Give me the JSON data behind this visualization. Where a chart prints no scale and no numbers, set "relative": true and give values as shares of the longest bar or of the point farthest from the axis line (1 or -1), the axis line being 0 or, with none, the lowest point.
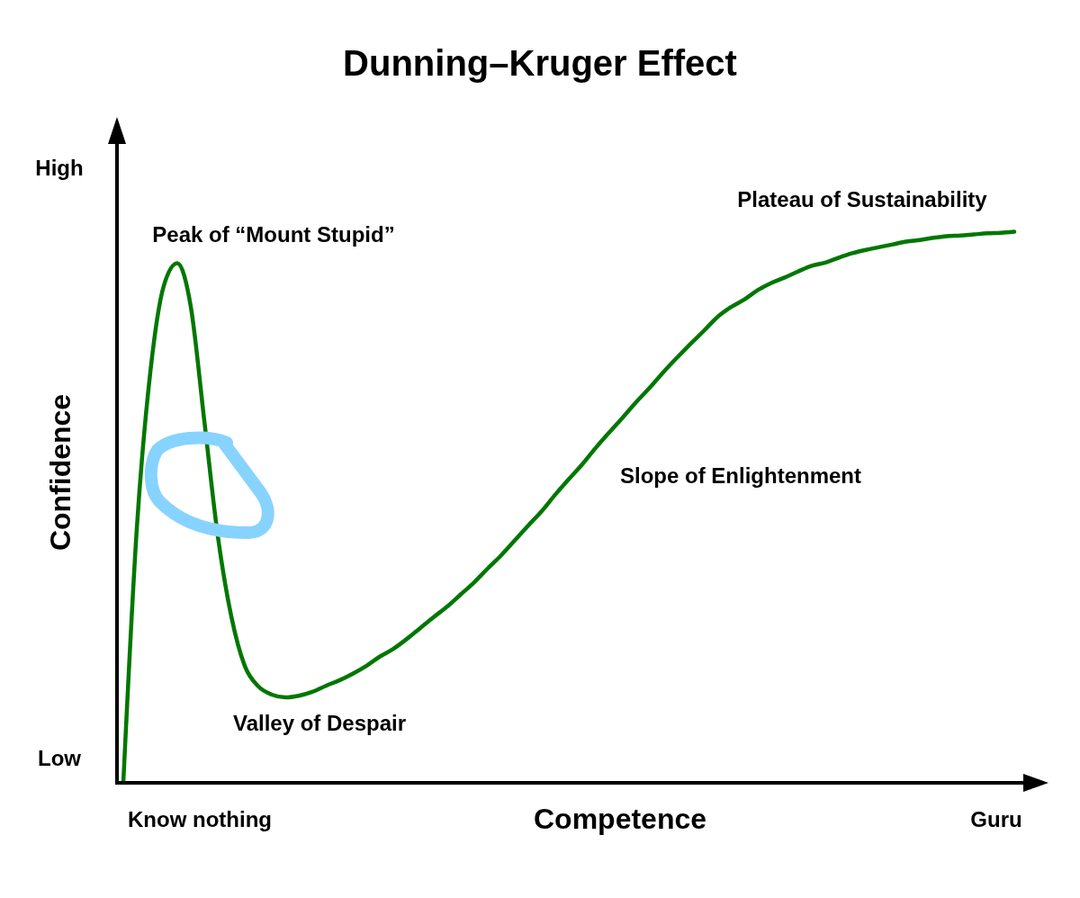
{
  "chart_data": {
    "type": "line",
    "title": "Dunning–Kruger Effect",
    "xlabel": "Competence",
    "ylabel": "Confidence",
    "relative": true,
    "categories": [
      null,
      null,
      null,
      null,
      null,
      null,
      null,
      null,
      null,
      null,
      null,
      null,
      null,
      null,
      null,
      null,
      null,
      null,
      null,
      null,
      null,
      null,
      null,
      null,
      null,
      null,
      null,
      null,
      null,
      null,
      null,
      null,
      null,
      null,
      null,
      null,
      null,
      null,
      null,
      null,
      null,
      null,
      null,
      null,
      null,
      null,
      null,
      null,
      null,
      null,
      null,
      null,
      null,
      null,
      null,
      null,
      null,
      null,
      null,
      null,
      null,
      null,
      null,
      null,
      null,
      null,
      null
    ],
    "series": [
      {
        "color": "#007700",
        "values": [
          0,
          0.461,
          0.745,
          0.902,
          0.943,
          0.864,
          0.657,
          0.448,
          0.302,
          0.212,
          0.175,
          0.16,
          0.155,
          0.158,
          0.165,
          0.176,
          0.186,
          0.198,
          0.212,
          0.229,
          0.243,
          0.261,
          0.281,
          0.301,
          0.32,
          0.342,
          0.364,
          0.389,
          0.413,
          0.44,
          0.467,
          0.493,
          0.523,
          0.551,
          0.578,
          0.608,
          0.636,
          0.663,
          0.691,
          0.717,
          0.745,
          0.771,
          0.796,
          0.82,
          0.845,
          0.863,
          0.877,
          0.894,
          0.907,
          0.917,
          0.928,
          0.938,
          0.944,
          0.953,
          0.961,
          0.967,
          0.972,
          0.977,
          0.982,
          0.985,
          0.989,
          0.992,
          0.993,
          0.995,
          0.997,
          0.998,
          1
        ]
      }
    ],
    "annotations": [
      "Peak of “Mount Stupid”",
      "Valley of Despair",
      "Slope of Enlightenment",
      "Plateau of Sustainability",
      "High",
      "Low",
      "Know nothing",
      "Guru"
    ],
    "grid": false,
    "marker": "none",
    "line_style": "solid"
  }
}
